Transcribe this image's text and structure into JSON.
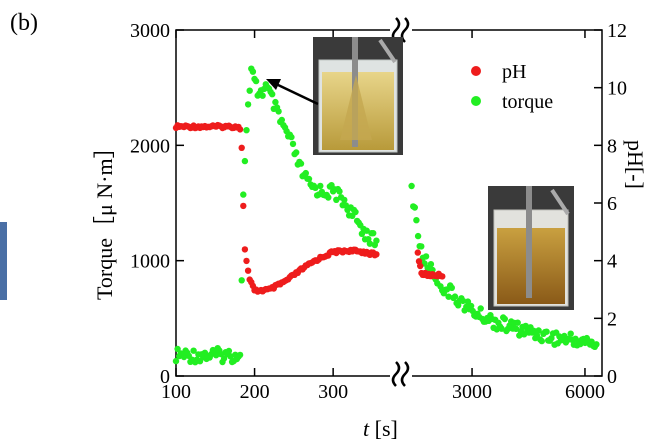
{
  "panel_label": "(b)",
  "colors": {
    "ph": "#ee1c1c",
    "torque": "#22ee22",
    "axis": "#000000",
    "edge_bar": "#4a6fa5"
  },
  "chart_data": {
    "type": "scatter",
    "title": "",
    "xlabel_italic": "t",
    "xlabel_rest": " [s]",
    "ylabel_left": "Torque［μ N·m］",
    "ylabel_right": "pH[-]",
    "x_axis_break": true,
    "x_segments": [
      {
        "range": [
          100,
          380
        ],
        "ticks": [
          100,
          200,
          300
        ]
      },
      {
        "range": [
          2000,
          6500
        ],
        "ticks": [
          3000,
          6000
        ],
        "scale": "log"
      }
    ],
    "ylim_left": [
      0,
      3000
    ],
    "yticks_left": [
      0,
      1000,
      2000,
      3000
    ],
    "ylim_right": [
      0,
      12
    ],
    "yticks_right": [
      0,
      2,
      4,
      6,
      8,
      10,
      12
    ],
    "legend_position": "top-right",
    "series": [
      {
        "name": "pH",
        "axis": "right",
        "points": [
          [
            100,
            8.65
          ],
          [
            180,
            8.65
          ],
          [
            183,
            8.55
          ],
          [
            187,
            4.55
          ],
          [
            193,
            3.4
          ],
          [
            200,
            2.95
          ],
          [
            220,
            3.0
          ],
          [
            240,
            3.3
          ],
          [
            260,
            3.7
          ],
          [
            280,
            4.05
          ],
          [
            300,
            4.3
          ],
          [
            320,
            4.35
          ],
          [
            340,
            4.3
          ],
          [
            355,
            4.2
          ],
          [
            2150,
            4.25
          ],
          [
            2200,
            3.55
          ],
          [
            2300,
            3.5
          ],
          [
            2500,
            3.5
          ]
        ]
      },
      {
        "name": "torque",
        "axis": "left",
        "points": [
          [
            100,
            180
          ],
          [
            180,
            180
          ],
          [
            182,
            250
          ],
          [
            186,
            1650
          ],
          [
            190,
            2200
          ],
          [
            196,
            2630
          ],
          [
            205,
            2450
          ],
          [
            215,
            2500
          ],
          [
            222,
            2400
          ],
          [
            230,
            2250
          ],
          [
            245,
            2050
          ],
          [
            258,
            1800
          ],
          [
            270,
            1650
          ],
          [
            285,
            1600
          ],
          [
            300,
            1600
          ],
          [
            310,
            1550
          ],
          [
            325,
            1400
          ],
          [
            340,
            1250
          ],
          [
            355,
            1150
          ],
          [
            2050,
            1700
          ],
          [
            2200,
            1050
          ],
          [
            2500,
            780
          ],
          [
            3000,
            560
          ],
          [
            3500,
            460
          ],
          [
            4200,
            390
          ],
          [
            5000,
            330
          ],
          [
            6000,
            300
          ],
          [
            6500,
            270
          ]
        ]
      }
    ]
  }
}
